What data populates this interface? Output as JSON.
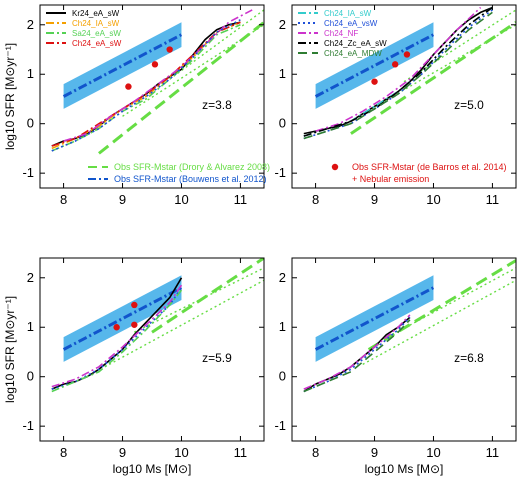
{
  "chart_data": [
    {
      "type": "line",
      "panel": "z=3.8",
      "annotation": "z=3.8",
      "xlabel": "",
      "ylabel": "log10 SFR [M⊙yr⁻¹]",
      "xlim": [
        7.6,
        11.4
      ],
      "ylim": [
        -1.3,
        2.4
      ],
      "xticks": [
        "8",
        "9",
        "10",
        "11"
      ],
      "yticks": [
        "-1",
        "0",
        "1",
        "2"
      ],
      "legend": [
        {
          "label": "Kr24_eA_sW",
          "color": "#000000",
          "dash": "solid"
        },
        {
          "label": "Ch24_IA_sW",
          "color": "#f4a000",
          "dash": "dashdot"
        },
        {
          "label": "Sa24_eA_sW",
          "color": "#55d155",
          "dash": "dashdot"
        },
        {
          "label": "Ch24_eA_sW",
          "color": "#dd1111",
          "dash": "dashdot"
        }
      ],
      "legend2": [
        {
          "label": "Obs SFR-Mstar (Drory & Alvarez 2008)",
          "color": "#66dd44",
          "dash": "dashed"
        },
        {
          "label": "Obs SFR-Mstar (Bouwens et al. 2012)",
          "color": "#1155cc",
          "dash": "dashdot"
        }
      ],
      "band": {
        "x": [
          8.0,
          10.0
        ],
        "lower": [
          0.3,
          1.55
        ],
        "upper": [
          0.8,
          2.05
        ],
        "mid": [
          0.55,
          1.8
        ],
        "color": "#3aaae8"
      },
      "green_dashed": {
        "x": [
          8.6,
          11.4
        ],
        "y": [
          -0.6,
          2.05
        ]
      },
      "green_dotted": {
        "x": [
          9.0,
          11.4
        ],
        "y": [
          0.15,
          2.0
        ]
      },
      "green_dotted2": {
        "x": [
          9.8,
          11.4
        ],
        "y": [
          0.9,
          2.3
        ]
      },
      "points": [
        {
          "x": 9.1,
          "y": 0.75
        },
        {
          "x": 9.55,
          "y": 1.2
        },
        {
          "x": 9.8,
          "y": 1.5
        }
      ],
      "series": [
        {
          "name": "Kr24_eA_sW",
          "color": "#000000",
          "dash": "solid",
          "x": [
            7.8,
            8.0,
            8.2,
            8.4,
            8.6,
            8.8,
            9.0,
            9.2,
            9.4,
            9.6,
            9.8,
            10.0,
            10.2,
            10.4,
            10.6,
            10.8,
            11.0
          ],
          "y": [
            -0.45,
            -0.35,
            -0.3,
            -0.2,
            -0.05,
            0.15,
            0.3,
            0.45,
            0.6,
            0.8,
            0.95,
            1.1,
            1.4,
            1.7,
            1.9,
            2.0,
            2.05
          ]
        },
        {
          "name": "Ch24_IA_sW",
          "color": "#f4a000",
          "dash": "dashdot",
          "x": [
            7.8,
            8.2,
            8.6,
            9.0,
            9.4,
            9.8,
            10.2,
            10.6,
            11.0
          ],
          "y": [
            -0.5,
            -0.3,
            -0.05,
            0.3,
            0.55,
            0.95,
            1.35,
            1.85,
            2.05
          ]
        },
        {
          "name": "Sa24_eA_sW",
          "color": "#55d155",
          "dash": "dashdot",
          "x": [
            7.8,
            8.2,
            8.6,
            9.0,
            9.4,
            9.8,
            10.2,
            10.6,
            11.0
          ],
          "y": [
            -0.55,
            -0.35,
            -0.1,
            0.25,
            0.5,
            0.9,
            1.3,
            1.8,
            2.0
          ]
        },
        {
          "name": "Ch24_eA_sW",
          "color": "#dd1111",
          "dash": "dashdot",
          "x": [
            7.8,
            8.2,
            8.6,
            9.0,
            9.4,
            9.8,
            10.2,
            10.6,
            11.0
          ],
          "y": [
            -0.45,
            -0.3,
            0.0,
            0.3,
            0.6,
            0.95,
            1.4,
            1.85,
            2.05
          ]
        },
        {
          "name": "",
          "color": "#cc33cc",
          "dash": "dashdot",
          "x": [
            8.0,
            8.4,
            8.8,
            9.2,
            9.6,
            10.0,
            10.4,
            10.8,
            11.2
          ],
          "y": [
            -0.35,
            -0.2,
            0.15,
            0.45,
            0.8,
            1.15,
            1.6,
            2.05,
            2.3
          ]
        },
        {
          "name": "",
          "color": "#1f4fd8",
          "dash": "dotted",
          "x": [
            7.8,
            8.2,
            8.6,
            9.0,
            9.4,
            9.8,
            10.2,
            10.6,
            11.0
          ],
          "y": [
            -0.55,
            -0.35,
            -0.1,
            0.25,
            0.55,
            0.9,
            1.35,
            1.85,
            2.1
          ]
        }
      ]
    },
    {
      "type": "line",
      "panel": "z=5.0",
      "annotation": "z=5.0",
      "xlim": [
        7.6,
        11.4
      ],
      "ylim": [
        -1.3,
        2.4
      ],
      "xticks": [
        "8",
        "9",
        "10",
        "11"
      ],
      "yticks": [
        "-1",
        "0",
        "1",
        "2"
      ],
      "legend": [
        {
          "label": "Ch24_IA_sW",
          "color": "#33cccc",
          "dash": "dashdot"
        },
        {
          "label": "Ch24_eA_vsW",
          "color": "#1f4fd8",
          "dash": "dotted"
        },
        {
          "label": "Ch24_NF",
          "color": "#cc33cc",
          "dash": "dashdot"
        },
        {
          "label": "Ch24_Zc_eA_sW",
          "color": "#000000",
          "dash": "dashdot"
        },
        {
          "label": "Ch24_eA_MDW",
          "color": "#2e7d32",
          "dash": "dashed"
        }
      ],
      "legend2": [
        {
          "label": "Obs SFR-Mstar (de Barros et al. 2014)",
          "color": "#dd1111",
          "marker": "circle"
        },
        {
          "label": "+ Nebular emission",
          "color": "#dd1111",
          "marker": "none"
        }
      ],
      "band": {
        "x": [
          8.0,
          10.0
        ],
        "lower": [
          0.3,
          1.55
        ],
        "upper": [
          0.8,
          2.05
        ],
        "mid": [
          0.55,
          1.8
        ],
        "color": "#3aaae8"
      },
      "green_dashed": {
        "x": [
          8.6,
          11.4
        ],
        "y": [
          -0.2,
          2.05
        ]
      },
      "green_dotted": {
        "x": [
          8.8,
          11.4
        ],
        "y": [
          0.2,
          2.0
        ]
      },
      "green_dotted2": {
        "x": [
          9.5,
          11.4
        ],
        "y": [
          0.85,
          2.3
        ]
      },
      "points": [
        {
          "x": 9.0,
          "y": 0.85
        },
        {
          "x": 9.35,
          "y": 1.2
        },
        {
          "x": 9.55,
          "y": 1.4
        }
      ],
      "series": [
        {
          "name": "Kr24_eA_sW",
          "color": "#000000",
          "dash": "solid",
          "x": [
            7.8,
            8.0,
            8.2,
            8.4,
            8.6,
            8.8,
            9.0,
            9.2,
            9.4,
            9.6,
            9.8,
            10.0,
            10.2,
            10.4,
            10.6,
            10.8,
            11.0
          ],
          "y": [
            -0.2,
            -0.15,
            -0.1,
            -0.05,
            0.05,
            0.2,
            0.35,
            0.5,
            0.65,
            0.85,
            1.1,
            1.4,
            1.65,
            1.9,
            2.1,
            2.25,
            2.35
          ]
        },
        {
          "name": "Ch24_IA_sW",
          "color": "#33cccc",
          "dash": "dashdot",
          "x": [
            7.8,
            8.2,
            8.6,
            9.0,
            9.4,
            9.8,
            10.2,
            10.6,
            11.0
          ],
          "y": [
            -0.25,
            -0.1,
            0.05,
            0.35,
            0.65,
            1.05,
            1.55,
            2.0,
            2.35
          ]
        },
        {
          "name": "Ch24_eA_vsW",
          "color": "#1f4fd8",
          "dash": "dotted",
          "x": [
            7.8,
            8.2,
            8.6,
            9.0,
            9.4,
            9.8,
            10.2,
            10.6,
            11.0
          ],
          "y": [
            -0.3,
            -0.15,
            0.0,
            0.3,
            0.6,
            1.0,
            1.5,
            1.95,
            2.3
          ]
        },
        {
          "name": "Ch24_NF",
          "color": "#cc33cc",
          "dash": "dashdot",
          "x": [
            8.0,
            8.4,
            8.8,
            9.2,
            9.6,
            10.0,
            10.4,
            10.8
          ],
          "y": [
            -0.15,
            0.0,
            0.25,
            0.55,
            0.9,
            1.4,
            1.9,
            2.35
          ]
        },
        {
          "name": "Ch24_Zc_eA_sW",
          "color": "#000000",
          "dash": "dashdot",
          "x": [
            7.8,
            8.2,
            8.6,
            9.0,
            9.4,
            9.8,
            10.2,
            10.6,
            11.0
          ],
          "y": [
            -0.25,
            -0.1,
            0.05,
            0.3,
            0.65,
            1.05,
            1.55,
            2.0,
            2.35
          ]
        },
        {
          "name": "Ch24_eA_MDW",
          "color": "#2e7d32",
          "dash": "dashed",
          "x": [
            7.8,
            8.2,
            8.6,
            9.0,
            9.4,
            9.8,
            10.2,
            10.6,
            11.0
          ],
          "y": [
            -0.3,
            -0.15,
            0.0,
            0.3,
            0.6,
            1.0,
            1.45,
            1.9,
            2.25
          ]
        }
      ]
    },
    {
      "type": "line",
      "panel": "z=5.9",
      "annotation": "z=5.9",
      "xlabel": "log10 Ms [M⊙]",
      "ylabel": "log10 SFR [M⊙yr⁻¹]",
      "xlim": [
        7.6,
        11.4
      ],
      "ylim": [
        -1.3,
        2.4
      ],
      "xticks": [
        "8",
        "9",
        "10",
        "11"
      ],
      "yticks": [
        "-1",
        "0",
        "1",
        "2"
      ],
      "band": {
        "x": [
          8.0,
          10.0
        ],
        "lower": [
          0.3,
          1.55
        ],
        "upper": [
          0.8,
          2.05
        ],
        "mid": [
          0.55,
          1.8
        ],
        "color": "#3aaae8"
      },
      "green_dashed": {
        "x": [
          9.5,
          11.4
        ],
        "y": [
          0.9,
          2.4
        ]
      },
      "green_dotted": {
        "x": [
          8.7,
          11.4
        ],
        "y": [
          0.2,
          1.95
        ]
      },
      "green_dotted2": {
        "x": [
          9.2,
          11.4
        ],
        "y": [
          0.9,
          2.2
        ]
      },
      "points": [
        {
          "x": 8.9,
          "y": 1.0
        },
        {
          "x": 9.2,
          "y": 1.05
        },
        {
          "x": 9.2,
          "y": 1.45
        }
      ],
      "series": [
        {
          "name": "Kr24_eA_sW",
          "color": "#000000",
          "dash": "solid",
          "x": [
            7.8,
            8.0,
            8.2,
            8.4,
            8.6,
            8.8,
            9.0,
            9.2,
            9.4,
            9.6,
            9.8,
            10.0
          ],
          "y": [
            -0.25,
            -0.15,
            -0.1,
            0.0,
            0.15,
            0.35,
            0.55,
            0.85,
            1.1,
            1.35,
            1.6,
            2.0
          ]
        },
        {
          "name": "",
          "color": "#cc33cc",
          "dash": "dashdot",
          "x": [
            7.8,
            8.2,
            8.6,
            9.0,
            9.4,
            9.8,
            10.0
          ],
          "y": [
            -0.2,
            -0.05,
            0.2,
            0.6,
            1.05,
            1.5,
            1.85
          ]
        },
        {
          "name": "",
          "color": "#1f4fd8",
          "dash": "dotted",
          "x": [
            7.8,
            8.2,
            8.6,
            9.0,
            9.4,
            9.8,
            10.0
          ],
          "y": [
            -0.25,
            -0.1,
            0.15,
            0.55,
            1.0,
            1.45,
            1.8
          ]
        },
        {
          "name": "",
          "color": "#55d155",
          "dash": "dashdot",
          "x": [
            7.8,
            8.2,
            8.6,
            9.0,
            9.4,
            9.8,
            10.0
          ],
          "y": [
            -0.3,
            -0.1,
            0.1,
            0.5,
            0.95,
            1.45,
            1.75
          ]
        }
      ]
    },
    {
      "type": "line",
      "panel": "z=6.8",
      "annotation": "z=6.8",
      "xlabel": "log10 Ms [M⊙]",
      "xlim": [
        7.6,
        11.4
      ],
      "ylim": [
        -1.3,
        2.4
      ],
      "xticks": [
        "8",
        "9",
        "10",
        "11"
      ],
      "yticks": [
        "-1",
        "0",
        "1",
        "2"
      ],
      "band": {
        "x": [
          8.0,
          10.0
        ],
        "lower": [
          0.3,
          1.55
        ],
        "upper": [
          0.8,
          2.05
        ],
        "mid": [
          0.55,
          1.8
        ],
        "color": "#3aaae8"
      },
      "green_dashed": {
        "x": [
          8.9,
          11.4
        ],
        "y": [
          0.55,
          2.35
        ]
      },
      "green_dotted": {
        "x": [
          8.8,
          11.4
        ],
        "y": [
          0.25,
          1.95
        ]
      },
      "green_dotted2": {
        "x": [
          9.3,
          11.4
        ],
        "y": [
          0.85,
          2.2
        ]
      },
      "points": [],
      "series": [
        {
          "name": "Kr24_eA_sW",
          "color": "#000000",
          "dash": "solid",
          "x": [
            7.8,
            8.0,
            8.2,
            8.4,
            8.6,
            8.8,
            9.0,
            9.2,
            9.4,
            9.6
          ],
          "y": [
            -0.3,
            -0.15,
            -0.05,
            0.05,
            0.2,
            0.4,
            0.6,
            0.85,
            1.0,
            1.2
          ]
        },
        {
          "name": "",
          "color": "#cc33cc",
          "dash": "dashdot",
          "x": [
            7.8,
            8.2,
            8.6,
            9.0,
            9.4,
            9.6
          ],
          "y": [
            -0.25,
            -0.05,
            0.2,
            0.6,
            1.0,
            1.25
          ]
        },
        {
          "name": "",
          "color": "#1f4fd8",
          "dash": "dotted",
          "x": [
            7.8,
            8.2,
            8.6,
            9.0,
            9.4,
            9.6
          ],
          "y": [
            -0.3,
            -0.1,
            0.15,
            0.55,
            0.95,
            1.2
          ]
        },
        {
          "name": "",
          "color": "#2e7d32",
          "dash": "dashed",
          "x": [
            7.8,
            8.2,
            8.6,
            9.0,
            9.4,
            9.6
          ],
          "y": [
            -0.3,
            -0.1,
            0.1,
            0.5,
            0.9,
            1.15
          ]
        }
      ]
    }
  ]
}
